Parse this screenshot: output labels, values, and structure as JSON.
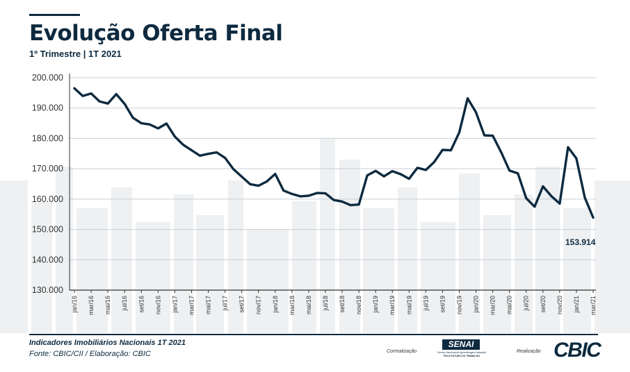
{
  "header": {
    "title": "Evolução Oferta Final",
    "subtitle": "1º Trimestre | 1T 2021"
  },
  "chart_data": {
    "type": "line",
    "title": "Evolução Oferta Final",
    "subtitle": "1º Trimestre | 1T 2021",
    "xlabel": "",
    "ylabel": "",
    "ylim": [
      130000,
      200000
    ],
    "yticks": [
      130000,
      140000,
      150000,
      160000,
      170000,
      180000,
      190000,
      200000
    ],
    "ytick_labels": [
      "130.000",
      "140.000",
      "150.000",
      "160.000",
      "170.000",
      "180.000",
      "190.000",
      "200.000"
    ],
    "x": [
      "jan/16",
      "fev/16",
      "mar/16",
      "abr/16",
      "mai/16",
      "jun/16",
      "jul/16",
      "ago/16",
      "set/16",
      "out/16",
      "nov/16",
      "dez/16",
      "jan/17",
      "fev/17",
      "mar/17",
      "abr/17",
      "mai/17",
      "jun/17",
      "jul/17",
      "ago/17",
      "set/17",
      "out/17",
      "nov/17",
      "dez/17",
      "jan/18",
      "fev/18",
      "mar/18",
      "abr/18",
      "mai/18",
      "jun/18",
      "jul/18",
      "ago/18",
      "set/18",
      "out/18",
      "nov/18",
      "dez/18",
      "jan/19",
      "fev/19",
      "mar/19",
      "abr/19",
      "mai/19",
      "jun/19",
      "jul/19",
      "ago/19",
      "set/19",
      "out/19",
      "nov/19",
      "dez/19",
      "jan/20",
      "fev/20",
      "mar/20",
      "abr/20",
      "mai/20",
      "jun/20",
      "jul/20",
      "ago/20",
      "set/20",
      "out/20",
      "nov/20",
      "dez/20",
      "jan/21",
      "fev/21",
      "mar/21"
    ],
    "x_tick_labels": [
      "jan/16",
      "mar/16",
      "mai/16",
      "jul/16",
      "set/16",
      "nov/16",
      "jan/17",
      "mar/17",
      "mai/17",
      "jul/17",
      "set/17",
      "nov/17",
      "jan/18",
      "mar/18",
      "mai/18",
      "jul/18",
      "set/18",
      "nov/18",
      "jan/19",
      "mar/19",
      "mai/19",
      "jul/19",
      "set/19",
      "nov/19",
      "jan/20",
      "mar/20",
      "mai/20",
      "jul/20",
      "set/20",
      "nov/20",
      "jan/21",
      "mar/21"
    ],
    "series": [
      {
        "name": "Oferta Final",
        "values": [
          196500,
          194000,
          194800,
          192200,
          191500,
          194600,
          191400,
          186800,
          185000,
          184600,
          183300,
          184900,
          180600,
          177900,
          176100,
          174300,
          174900,
          175400,
          173600,
          169900,
          167400,
          164900,
          164400,
          165800,
          168300,
          162800,
          161700,
          160900,
          161100,
          162000,
          161900,
          159700,
          159200,
          158000,
          158200,
          167800,
          169300,
          167500,
          169200,
          168200,
          166700,
          170300,
          169600,
          172200,
          176200,
          176100,
          182000,
          193200,
          188600,
          181000,
          180900,
          175500,
          169400,
          168500,
          160300,
          157500,
          164200,
          161000,
          158500,
          177100,
          173400,
          160500,
          153914
        ]
      }
    ],
    "annotation": {
      "text": "153.914",
      "point": "mar/21"
    },
    "grid": true
  },
  "footer": {
    "line1": "Indicadores Imobiliários Nacionais 1T 2021",
    "line2": "Fonte: CBIC/CII / Elaboração: CBIC",
    "corr_label": "Correalização",
    "real_label": "Realização",
    "senai_name": "SENAI",
    "senai_sub1": "Serviço Nacional de Aprendizagem Industrial",
    "senai_sub2": "PELO FUTURO DO TRABALHO",
    "cbic_name": "CBIC"
  },
  "colors": {
    "primary": "#0d2a3f",
    "grid": "#c9ced3",
    "background": "#ffffff"
  }
}
